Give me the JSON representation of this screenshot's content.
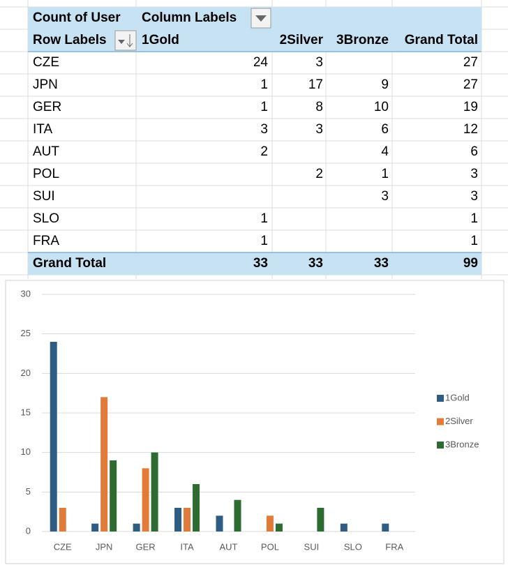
{
  "pivot": {
    "header1": [
      "Count of User",
      "Column Labels"
    ],
    "header2": [
      "Row Labels",
      "1Gold",
      "2Silver",
      "3Bronze",
      "Grand Total"
    ],
    "rows": [
      [
        "CZE",
        24,
        3,
        null,
        27
      ],
      [
        "JPN",
        1,
        17,
        9,
        27
      ],
      [
        "GER",
        1,
        8,
        10,
        19
      ],
      [
        "ITA",
        3,
        3,
        6,
        12
      ],
      [
        "AUT",
        2,
        null,
        4,
        6
      ],
      [
        "POL",
        null,
        2,
        1,
        3
      ],
      [
        "SUI",
        null,
        null,
        3,
        3
      ],
      [
        "SLO",
        1,
        null,
        null,
        1
      ],
      [
        "FRA",
        1,
        null,
        null,
        1
      ]
    ],
    "total": [
      "Grand Total",
      33,
      33,
      33,
      99
    ]
  },
  "chart_data": {
    "type": "bar",
    "categories": [
      "CZE",
      "JPN",
      "GER",
      "ITA",
      "AUT",
      "POL",
      "SUI",
      "SLO",
      "FRA"
    ],
    "series": [
      {
        "name": "1Gold",
        "color": "#2e5c82",
        "values": [
          24,
          1,
          1,
          3,
          2,
          null,
          null,
          1,
          1
        ]
      },
      {
        "name": "2Silver",
        "color": "#e07b39",
        "values": [
          3,
          17,
          8,
          3,
          null,
          2,
          null,
          null,
          null
        ]
      },
      {
        "name": "3Bronze",
        "color": "#2e6b31",
        "values": [
          null,
          9,
          10,
          6,
          4,
          1,
          3,
          null,
          null
        ]
      }
    ],
    "ylim": [
      0,
      30
    ],
    "yticks": [
      0,
      5,
      10,
      15,
      20,
      25,
      30
    ],
    "grid": true,
    "legend": "right"
  }
}
